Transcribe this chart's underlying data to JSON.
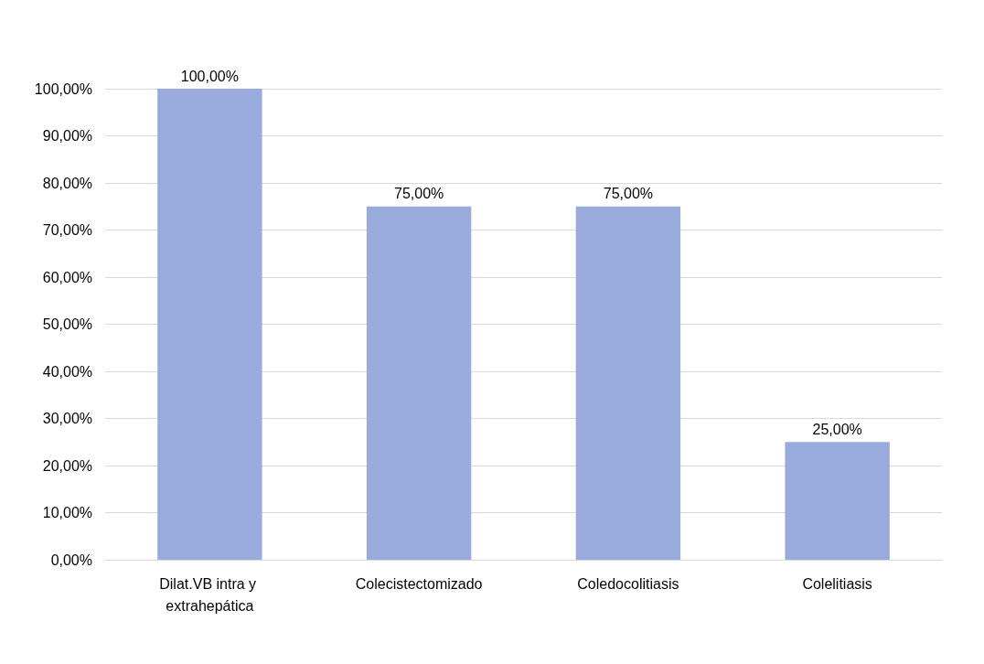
{
  "chart_data": {
    "type": "bar",
    "categories": [
      "Dilat.VB intra y extrahepática",
      "Colecistectomizado",
      "Coledocolitiasis",
      "Colelitiasis"
    ],
    "values": [
      100,
      75,
      75,
      25
    ],
    "value_labels": [
      "100,00%",
      "75,00%",
      "75,00%",
      "25,00%"
    ],
    "color": "#98abdc",
    "ylim": [
      0,
      100
    ],
    "yticks": [
      {
        "value": 0,
        "label": "0,00%"
      },
      {
        "value": 10,
        "label": "10,00%"
      },
      {
        "value": 20,
        "label": "20,00%"
      },
      {
        "value": 30,
        "label": "30,00%"
      },
      {
        "value": 40,
        "label": "40,00%"
      },
      {
        "value": 50,
        "label": "50,00%"
      },
      {
        "value": 60,
        "label": "60,00%"
      },
      {
        "value": 70,
        "label": "70,00%"
      },
      {
        "value": 80,
        "label": "80,00%"
      },
      {
        "value": 90,
        "label": "90,00%"
      },
      {
        "value": 100,
        "label": "100,00%"
      }
    ],
    "grid": "y"
  }
}
